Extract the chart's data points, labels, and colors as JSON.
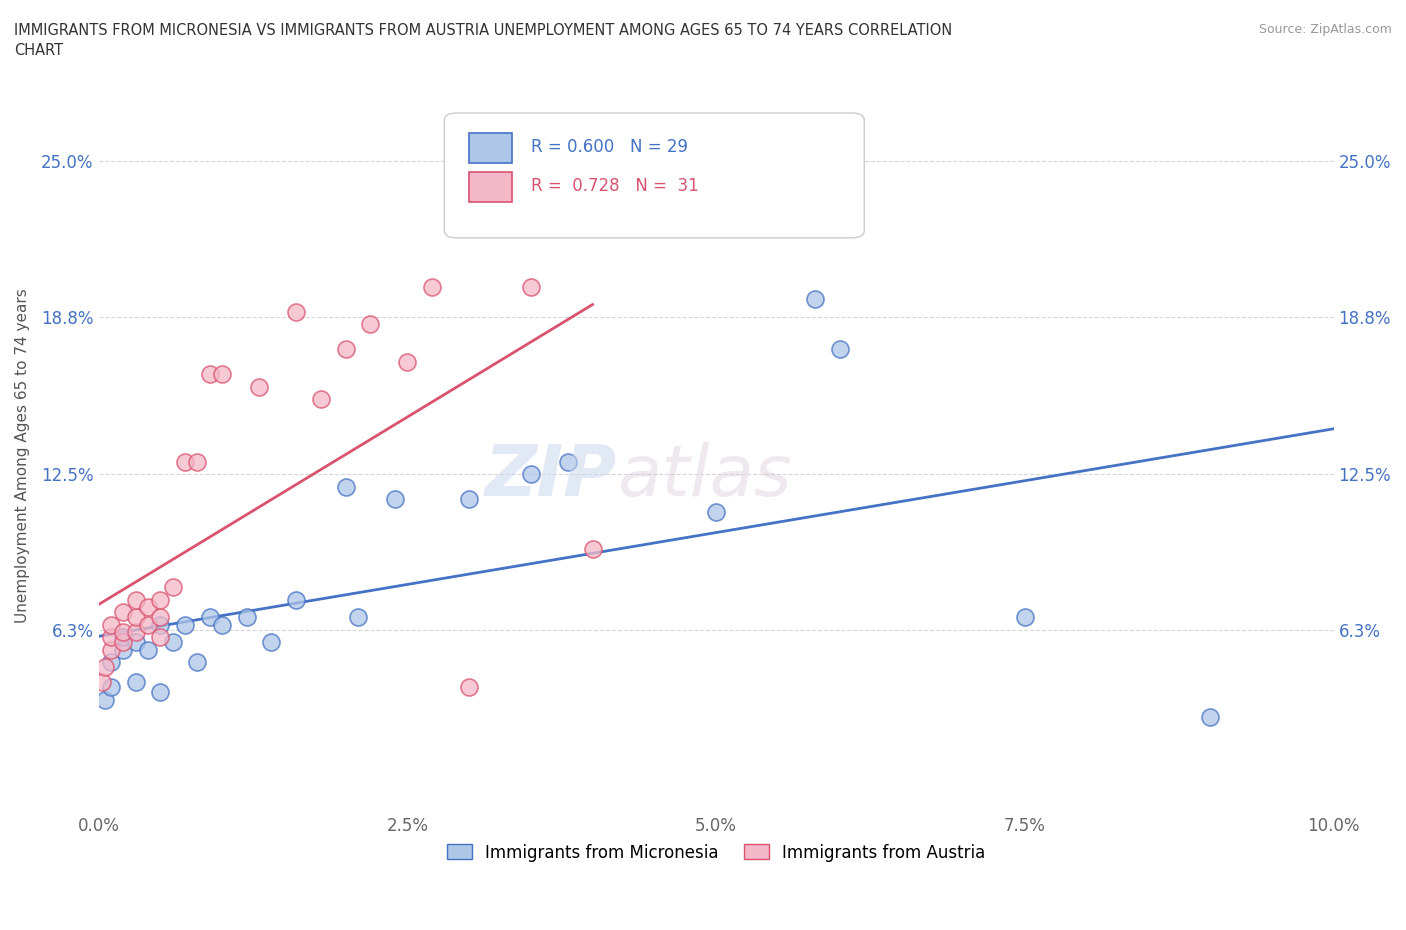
{
  "title": "IMMIGRANTS FROM MICRONESIA VS IMMIGRANTS FROM AUSTRIA UNEMPLOYMENT AMONG AGES 65 TO 74 YEARS CORRELATION\nCHART",
  "source_text": "Source: ZipAtlas.com",
  "xlabel": "",
  "ylabel": "Unemployment Among Ages 65 to 74 years",
  "xlim": [
    0.0,
    0.1
  ],
  "ylim": [
    -0.01,
    0.275
  ],
  "xtick_labels": [
    "0.0%",
    "2.5%",
    "5.0%",
    "7.5%",
    "10.0%"
  ],
  "xtick_positions": [
    0.0,
    0.025,
    0.05,
    0.075,
    0.1
  ],
  "ytick_labels": [
    "6.3%",
    "12.5%",
    "18.8%",
    "25.0%"
  ],
  "ytick_positions": [
    0.063,
    0.125,
    0.188,
    0.25
  ],
  "watermark_zip": "ZIP",
  "watermark_atlas": "atlas",
  "legend_r_micronesia": "R = 0.600",
  "legend_n_micronesia": "N = 29",
  "legend_r_austria": "R =  0.728",
  "legend_n_austria": "N =  31",
  "blue_color": "#aec6e8",
  "blue_line_color": "#4472c4",
  "pink_color": "#f4b8c8",
  "pink_line_color": "#d9536f",
  "micronesia_x": [
    0.0005,
    0.001,
    0.001,
    0.002,
    0.002,
    0.003,
    0.003,
    0.004,
    0.005,
    0.005,
    0.006,
    0.007,
    0.008,
    0.009,
    0.01,
    0.012,
    0.014,
    0.016,
    0.02,
    0.021,
    0.024,
    0.03,
    0.035,
    0.038,
    0.05,
    0.058,
    0.06,
    0.075,
    0.09
  ],
  "micronesia_y": [
    0.035,
    0.04,
    0.05,
    0.055,
    0.06,
    0.042,
    0.058,
    0.055,
    0.065,
    0.038,
    0.058,
    0.065,
    0.05,
    0.068,
    0.065,
    0.068,
    0.058,
    0.075,
    0.12,
    0.068,
    0.115,
    0.115,
    0.125,
    0.13,
    0.11,
    0.195,
    0.175,
    0.068,
    0.028
  ],
  "austria_x": [
    0.0003,
    0.0005,
    0.001,
    0.001,
    0.001,
    0.002,
    0.002,
    0.002,
    0.003,
    0.003,
    0.003,
    0.004,
    0.004,
    0.005,
    0.005,
    0.005,
    0.006,
    0.007,
    0.008,
    0.009,
    0.01,
    0.013,
    0.016,
    0.018,
    0.02,
    0.022,
    0.025,
    0.027,
    0.03,
    0.035,
    0.04
  ],
  "austria_y": [
    0.042,
    0.048,
    0.055,
    0.06,
    0.065,
    0.058,
    0.062,
    0.07,
    0.062,
    0.068,
    0.075,
    0.065,
    0.072,
    0.06,
    0.068,
    0.075,
    0.08,
    0.13,
    0.13,
    0.165,
    0.165,
    0.16,
    0.19,
    0.155,
    0.175,
    0.185,
    0.17,
    0.2,
    0.04,
    0.2,
    0.095
  ]
}
